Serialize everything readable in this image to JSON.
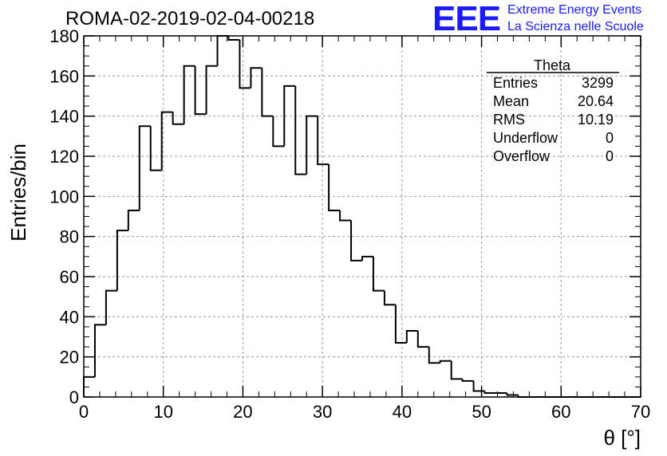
{
  "header": {
    "title": "ROMA-02-2019-02-04-00218",
    "logo": "EEE",
    "logo_line1": "Extreme Energy Events",
    "logo_line2": "La Scienza nelle Scuole"
  },
  "stats": {
    "title": "Theta",
    "rows": [
      {
        "label": "Entries",
        "value": "3299"
      },
      {
        "label": "Mean",
        "value": "20.64"
      },
      {
        "label": "RMS",
        "value": "10.19"
      },
      {
        "label": "Underflow",
        "value": "0"
      },
      {
        "label": "Overflow",
        "value": "0"
      }
    ]
  },
  "colors": {
    "logo": "#1a1aff",
    "line": "#000000",
    "grid": "#9a9a9a"
  },
  "chart_data": {
    "type": "bar",
    "histogram": true,
    "xlabel": "θ [°]",
    "ylabel": "Entries/bin",
    "xlim": [
      0,
      70
    ],
    "ylim": [
      0,
      180
    ],
    "xticks": [
      "0",
      "10",
      "20",
      "30",
      "40",
      "50",
      "60",
      "70"
    ],
    "yticks": [
      "0",
      "20",
      "40",
      "60",
      "80",
      "100",
      "120",
      "140",
      "160",
      "180"
    ],
    "grid": true,
    "legend": "top-right",
    "bin_width": 1.4,
    "bin_edges_start": 0,
    "values": [
      10,
      36,
      53,
      83,
      93,
      135,
      113,
      142,
      136,
      165,
      141,
      165,
      180,
      178,
      154,
      164,
      140,
      125,
      155,
      111,
      140,
      116,
      93,
      88,
      68,
      70,
      53,
      46,
      27,
      33,
      25,
      17,
      18,
      9,
      8,
      3,
      2,
      2,
      1,
      0,
      0,
      0,
      0,
      0,
      0,
      0,
      0,
      0,
      0,
      0
    ]
  }
}
